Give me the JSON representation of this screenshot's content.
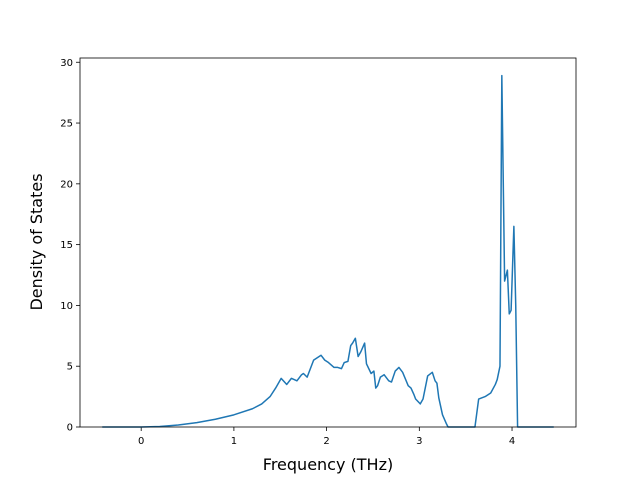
{
  "chart_data": {
    "type": "line",
    "xlabel": "Frequency (THz)",
    "ylabel": "Density of States",
    "color": "#1f77b4",
    "x": [
      -0.42,
      0,
      0.2,
      0.4,
      0.6,
      0.8,
      1.0,
      1.2,
      1.3,
      1.39,
      1.45,
      1.51,
      1.57,
      1.62,
      1.68,
      1.73,
      1.75,
      1.79,
      1.86,
      1.94,
      1.98,
      2.02,
      2.08,
      2.12,
      2.16,
      2.19,
      2.23,
      2.26,
      2.28,
      2.31,
      2.34,
      2.37,
      2.41,
      2.43,
      2.48,
      2.51,
      2.53,
      2.55,
      2.58,
      2.62,
      2.67,
      2.7,
      2.74,
      2.78,
      2.82,
      2.88,
      2.91,
      2.94,
      2.96,
      3.01,
      3.04,
      3.09,
      3.14,
      3.17,
      3.19,
      3.21,
      3.25,
      3.29,
      3.31,
      3.6,
      3.64,
      3.71,
      3.77,
      3.82,
      3.84,
      3.87,
      3.89,
      3.92,
      3.95,
      3.97,
      3.99,
      4.02,
      4.04,
      4.06,
      4.45
    ],
    "values": [
      0,
      0,
      0.04,
      0.16,
      0.36,
      0.64,
      1.0,
      1.5,
      1.9,
      2.5,
      3.2,
      4.0,
      3.5,
      4.0,
      3.8,
      4.3,
      4.4,
      4.1,
      5.5,
      5.9,
      5.5,
      5.3,
      4.9,
      4.9,
      4.8,
      5.3,
      5.4,
      6.7,
      6.9,
      7.3,
      5.8,
      6.2,
      6.9,
      5.2,
      4.4,
      4.6,
      3.2,
      3.4,
      4.1,
      4.3,
      3.8,
      3.7,
      4.6,
      4.9,
      4.5,
      3.4,
      3.2,
      2.7,
      2.3,
      1.9,
      2.3,
      4.2,
      4.5,
      3.8,
      3.6,
      2.4,
      1.0,
      0.3,
      0,
      0,
      2.3,
      2.5,
      2.8,
      3.5,
      3.9,
      5.0,
      28.9,
      12.0,
      12.9,
      9.3,
      9.6,
      16.5,
      10.0,
      0,
      0
    ],
    "xlim": [
      -0.66,
      4.69
    ],
    "ylim": [
      0,
      30.35
    ],
    "xticks": [
      0,
      1,
      2,
      3,
      4
    ],
    "yticks": [
      0,
      5,
      10,
      15,
      20,
      25,
      30
    ]
  }
}
